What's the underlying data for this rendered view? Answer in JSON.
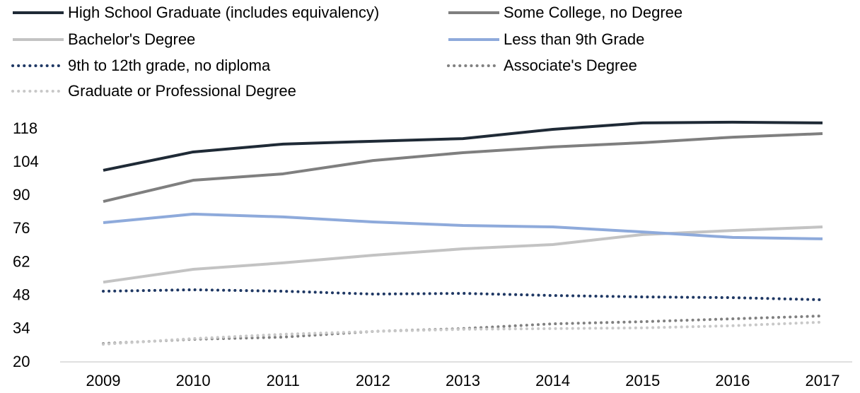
{
  "chart_data": {
    "type": "line",
    "x": [
      "2009",
      "2010",
      "2011",
      "2012",
      "2013",
      "2014",
      "2015",
      "2016",
      "2017"
    ],
    "ylim": [
      20,
      125
    ],
    "yticks": [
      20,
      34,
      48,
      62,
      76,
      90,
      104,
      118
    ],
    "grid": false,
    "series": [
      {
        "name": "High School Graduate (includes equivalency)",
        "color": "#1f2a36",
        "style": "solid",
        "values": [
          100.5,
          108.2,
          111.5,
          112.7,
          113.8,
          117.7,
          120.4,
          120.7,
          120.4
        ]
      },
      {
        "name": "Some College, no Degree",
        "color": "#7f7f7f",
        "style": "solid",
        "values": [
          87.4,
          96.3,
          99,
          104.6,
          107.9,
          110.3,
          112.1,
          114.4,
          115.9
        ]
      },
      {
        "name": "Bachelor's Degree",
        "color": "#c3c3c3",
        "style": "solid",
        "values": [
          53.5,
          58.9,
          61.6,
          64.8,
          67.5,
          69.3,
          73.5,
          75.2,
          76.7
        ]
      },
      {
        "name": "Less than 9th Grade",
        "color": "#8eaadb",
        "style": "solid",
        "values": [
          78.5,
          82.1,
          80.9,
          78.8,
          77.3,
          76.7,
          74.6,
          72.3,
          71.7
        ]
      },
      {
        "name": "9th to 12th grade, no diploma",
        "color": "#1f3864",
        "style": "dotted",
        "values": [
          49.7,
          50.3,
          49.7,
          48.5,
          48.8,
          47.9,
          47.3,
          47,
          46.1
        ]
      },
      {
        "name": "Associate's Degree",
        "color": "#808080",
        "style": "dotted",
        "values": [
          27.7,
          29.5,
          30.4,
          32.8,
          34,
          36,
          36.9,
          38.1,
          39.3
        ]
      },
      {
        "name": "Graduate or Professional Degree",
        "color": "#c8c8c8",
        "style": "dotted",
        "values": [
          27.4,
          29.8,
          31.6,
          32.8,
          33.7,
          34,
          34.3,
          35.2,
          36.7
        ]
      }
    ]
  }
}
